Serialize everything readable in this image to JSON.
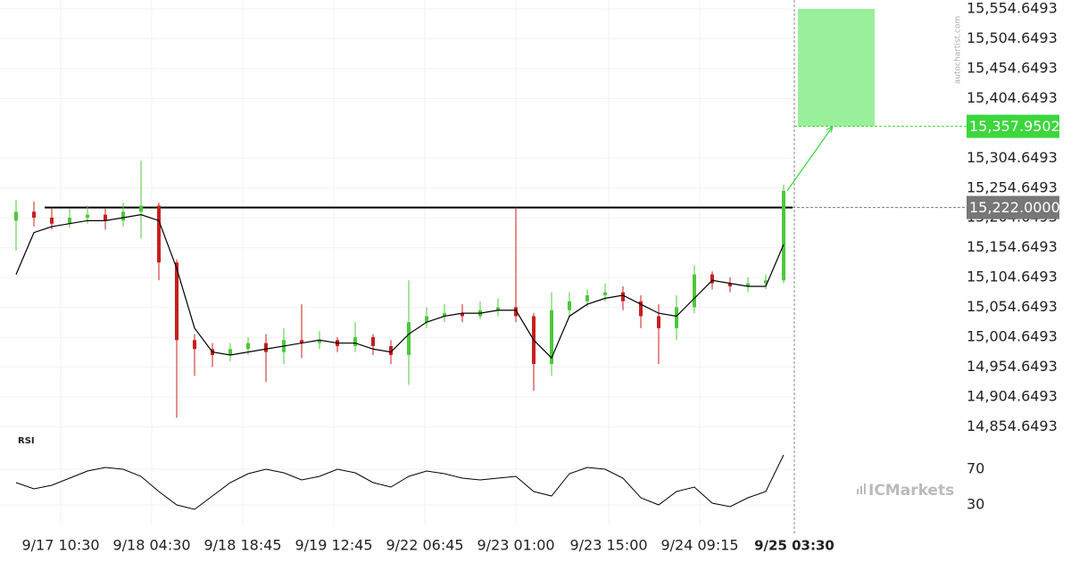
{
  "chart_data": {
    "type": "candlestick",
    "open": [
      15200,
      15215,
      15205,
      15195,
      15205,
      15210,
      15200,
      15215,
      15225,
      15130,
      15000,
      14985,
      14975,
      14985,
      14995,
      14980,
      15000,
      14995,
      15000,
      14990,
      15005,
      14990,
      14975,
      15030,
      15040,
      15045,
      15040,
      15050,
      15055,
      15040,
      14960,
      15050,
      15065,
      15075,
      15080,
      15065,
      15040,
      15020,
      15055,
      15110,
      15095,
      15090,
      15095,
      15100
    ],
    "high": [
      15235,
      15232,
      15222,
      15220,
      15225,
      15220,
      15230,
      15300,
      15230,
      15135,
      15010,
      14995,
      14995,
      15005,
      15010,
      15020,
      15060,
      15015,
      15005,
      15030,
      15010,
      15000,
      15100,
      15055,
      15060,
      15060,
      15065,
      15070,
      15222,
      15045,
      15080,
      15080,
      15085,
      15095,
      15090,
      15075,
      15060,
      15075,
      15125,
      15115,
      15105,
      15105,
      15110,
      15260
    ],
    "low": [
      15150,
      15190,
      15185,
      15188,
      15195,
      15185,
      15190,
      15170,
      15100,
      14870,
      14940,
      14955,
      14965,
      14975,
      14930,
      14960,
      14970,
      14985,
      14980,
      14980,
      14975,
      14960,
      14925,
      15020,
      15030,
      15030,
      15035,
      15040,
      15030,
      14915,
      14940,
      15040,
      15055,
      15065,
      15050,
      15020,
      14960,
      15000,
      15045,
      15085,
      15080,
      15080,
      15085,
      15095
    ],
    "close": [
      15215,
      15205,
      15195,
      15205,
      15210,
      15200,
      15215,
      15225,
      15130,
      15000,
      14985,
      14975,
      14985,
      14995,
      14980,
      15000,
      14995,
      15000,
      14990,
      15005,
      14990,
      14975,
      15030,
      15040,
      15045,
      15040,
      15050,
      15055,
      15040,
      14960,
      15050,
      15065,
      15075,
      15080,
      15065,
      15040,
      15020,
      15055,
      15110,
      15095,
      15090,
      15095,
      15100,
      15250
    ],
    "up_color": "#4cc93a",
    "down_color": "#c81e1e",
    "moving_average": {
      "color": "#000000",
      "values": [
        15110,
        15180,
        15190,
        15195,
        15200,
        15200,
        15205,
        15210,
        15200,
        15120,
        15020,
        14980,
        14975,
        14980,
        14985,
        14990,
        14995,
        15000,
        14995,
        14995,
        14985,
        14980,
        15010,
        15030,
        15040,
        15045,
        15045,
        15050,
        15050,
        15000,
        14970,
        15040,
        15060,
        15070,
        15075,
        15060,
        15045,
        15040,
        15070,
        15100,
        15095,
        15090,
        15090,
        15160
      ]
    },
    "xlim": [
      -0.5,
      43.5
    ],
    "xticks": [
      {
        "value": 2.5,
        "label": "9/17 10:30"
      },
      {
        "value": 7.6,
        "label": "9/18 04:30"
      },
      {
        "value": 12.7,
        "label": "9/18 18:45"
      },
      {
        "value": 17.8,
        "label": "9/19 12:45"
      },
      {
        "value": 22.9,
        "label": "9/22 06:45"
      },
      {
        "value": 28,
        "label": "9/23 01:00"
      },
      {
        "value": 33.2,
        "label": "9/23 15:00"
      },
      {
        "value": 38.3,
        "label": "9/24 09:15"
      },
      {
        "value": 43.6,
        "label": "9/25 03:30"
      }
    ],
    "ylim": [
      14845,
      15562
    ],
    "yticks": [
      {
        "value": 15554.6493,
        "label": "15,554.6493"
      },
      {
        "value": 15504.6493,
        "label": "15,504.6493"
      },
      {
        "value": 15454.6493,
        "label": "15,454.6493"
      },
      {
        "value": 15404.6493,
        "label": "15,404.6493"
      },
      {
        "value": 15304.6493,
        "label": "15,304.6493"
      },
      {
        "value": 15254.6493,
        "label": "15,254.6493"
      },
      {
        "value": 15204.6493,
        "label": "15,204.6493"
      },
      {
        "value": 15154.6493,
        "label": "15,154.6493"
      },
      {
        "value": 15104.6493,
        "label": "15,104.6493"
      },
      {
        "value": 15054.6493,
        "label": "15,054.6493"
      },
      {
        "value": 15004.6493,
        "label": "15,004.6493"
      },
      {
        "value": 14954.6493,
        "label": "14,954.6493"
      },
      {
        "value": 14904.6493,
        "label": "14,904.6493"
      },
      {
        "value": 14854.6493,
        "label": "14,854.6493"
      }
    ],
    "grid": true,
    "level": {
      "value": 15222.0,
      "label": "15,222.0000",
      "color": "#777777"
    },
    "target": {
      "value": 15357.9502,
      "label": "15,357.9502",
      "zone_top": 15554.6493,
      "color": "#3dd63d"
    },
    "rsi": {
      "title": "RSI",
      "ylim": [
        6,
        96
      ],
      "yticks": [
        70,
        30
      ],
      "values": [
        55,
        48,
        52,
        60,
        68,
        72,
        70,
        62,
        45,
        30,
        25,
        40,
        55,
        65,
        70,
        66,
        58,
        62,
        70,
        66,
        55,
        50,
        62,
        68,
        65,
        60,
        58,
        60,
        62,
        45,
        40,
        65,
        72,
        70,
        60,
        38,
        30,
        45,
        50,
        32,
        28,
        38,
        45,
        86
      ]
    },
    "watermark": "autochartist.com",
    "brand": "ICMarkets"
  }
}
